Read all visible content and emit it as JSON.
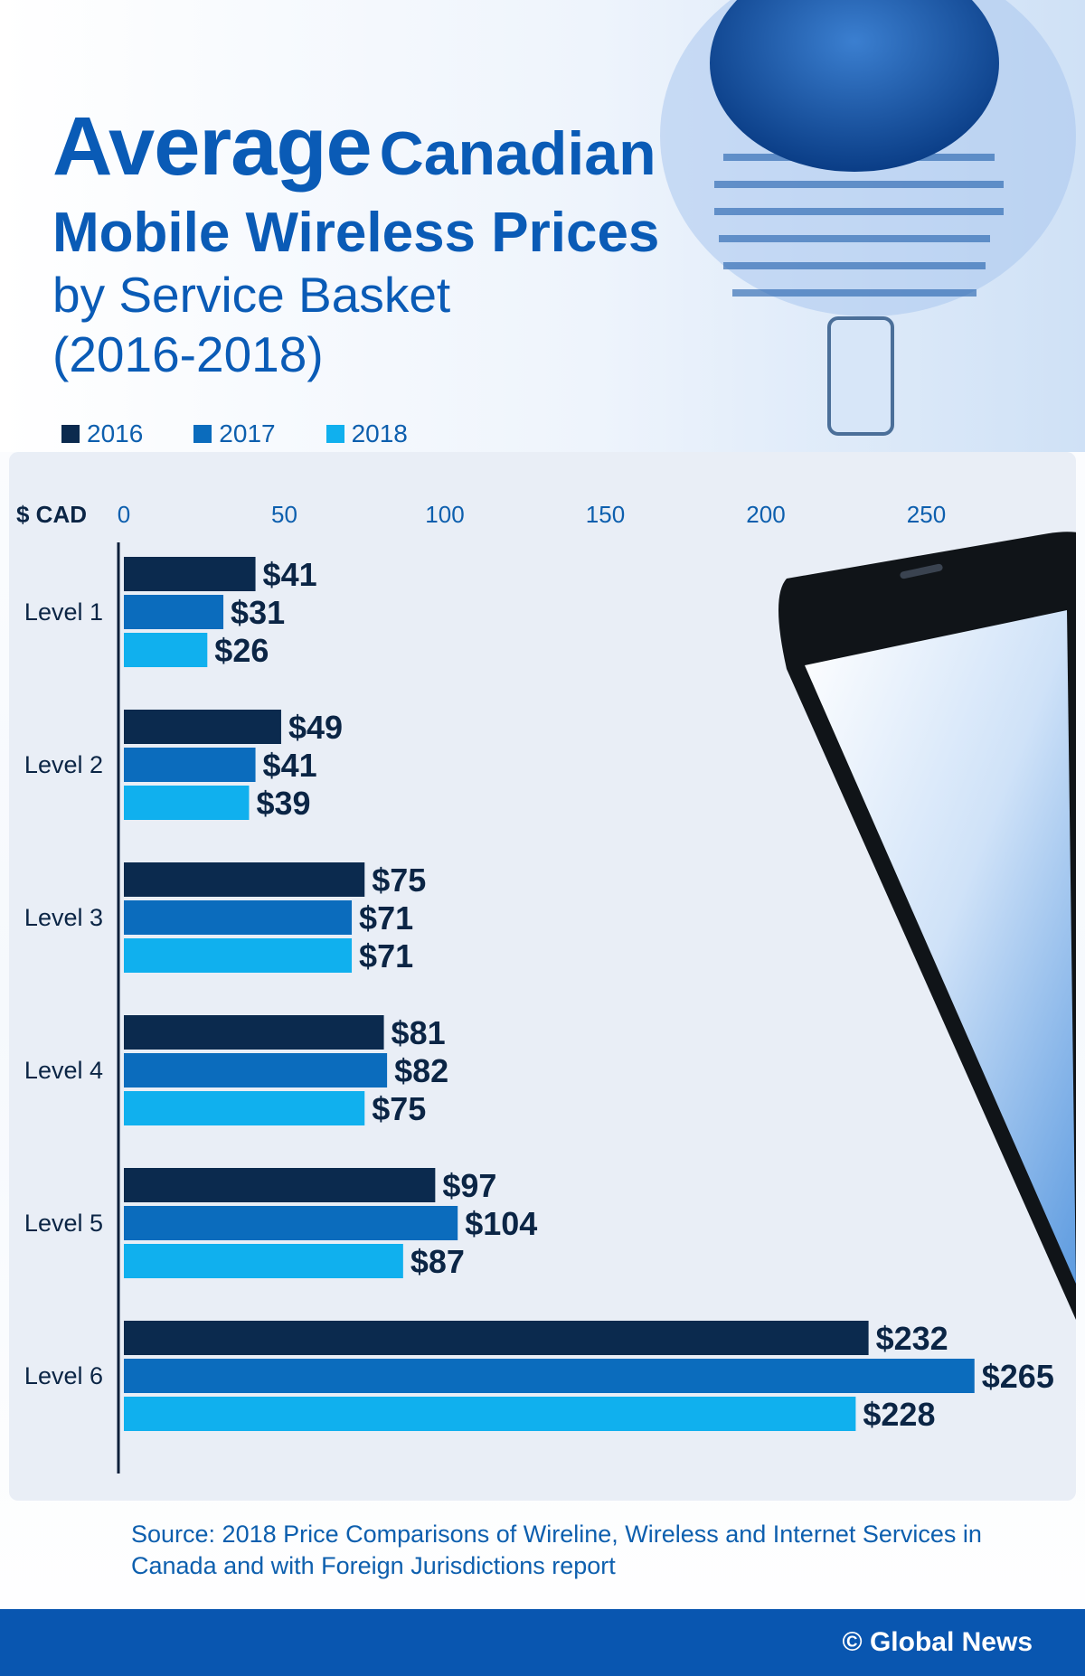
{
  "title": {
    "line1_big": "Average",
    "line1_rest": "Canadian",
    "line2": "Mobile Wireless Prices",
    "line3": "by Service Basket",
    "line4": "(2016-2018)"
  },
  "legend": [
    {
      "label": "2016",
      "color": "#0b2a4e"
    },
    {
      "label": "2017",
      "color": "#0b6cbd"
    },
    {
      "label": "2018",
      "color": "#10b0ee"
    }
  ],
  "chart_data": {
    "type": "bar",
    "orientation": "horizontal",
    "axis_unit_label": "$ CAD",
    "xlim": [
      0,
      275
    ],
    "xticks": [
      "0",
      "50",
      "100",
      "150",
      "200",
      "250"
    ],
    "categories": [
      "Level 1",
      "Level 2",
      "Level 3",
      "Level 4",
      "Level 5",
      "Level 6"
    ],
    "series": [
      {
        "name": "2016",
        "color": "#0b2a4e",
        "values": [
          41,
          49,
          75,
          81,
          97,
          232
        ],
        "labels": [
          "$41",
          "$49",
          "$75",
          "$81",
          "$97",
          "$232"
        ]
      },
      {
        "name": "2017",
        "color": "#0b6cbd",
        "values": [
          31,
          41,
          71,
          82,
          104,
          265
        ],
        "labels": [
          "$31",
          "$41",
          "$71",
          "$82",
          "$104",
          "$265"
        ]
      },
      {
        "name": "2018",
        "color": "#10b0ee",
        "values": [
          26,
          39,
          71,
          75,
          87,
          228
        ],
        "labels": [
          "$26",
          "$39",
          "$71",
          "$75",
          "$87",
          "$228"
        ]
      }
    ],
    "grid": false,
    "legend_position": "top-left"
  },
  "source": "Source: 2018 Price Comparisons of Wireline, Wireless and Internet Services in Canada and with Foreign Jurisdictions report",
  "brand": "© Global News",
  "colors": {
    "title": "#0a5bb6",
    "footer": "#0956b0",
    "label_text": "#0b2545"
  }
}
